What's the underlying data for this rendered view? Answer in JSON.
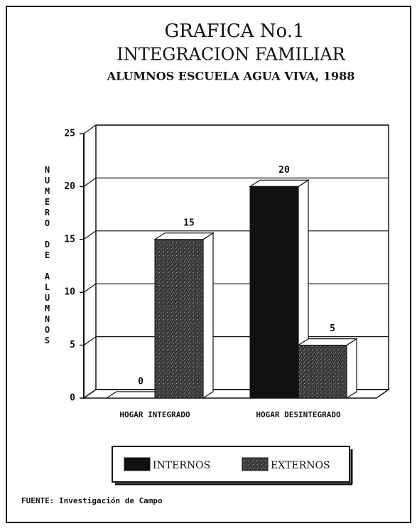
{
  "chart_data": {
    "type": "bar3d",
    "title": "GRAFICA No.1",
    "subtitle": "INTEGRACION FAMILIAR",
    "subtitle2": "ALUMNOS ESCUELA AGUA VIVA, 1988",
    "y_label": "NUMERO DE ALUMNOS",
    "categories": [
      "HOGAR INTEGRADO",
      "HOGAR DESINTEGRADO"
    ],
    "series": [
      {
        "name": "INTERNOS",
        "color": "#111111",
        "values": [
          0,
          20
        ]
      },
      {
        "name": "EXTERNOS",
        "color": "#3c3c3c",
        "values": [
          15,
          5
        ]
      }
    ],
    "ylim": [
      0,
      25
    ],
    "yticks": [
      0,
      5,
      10,
      15,
      20,
      25
    ],
    "grid": true,
    "source": "FUENTE: Investigación de Campo"
  }
}
